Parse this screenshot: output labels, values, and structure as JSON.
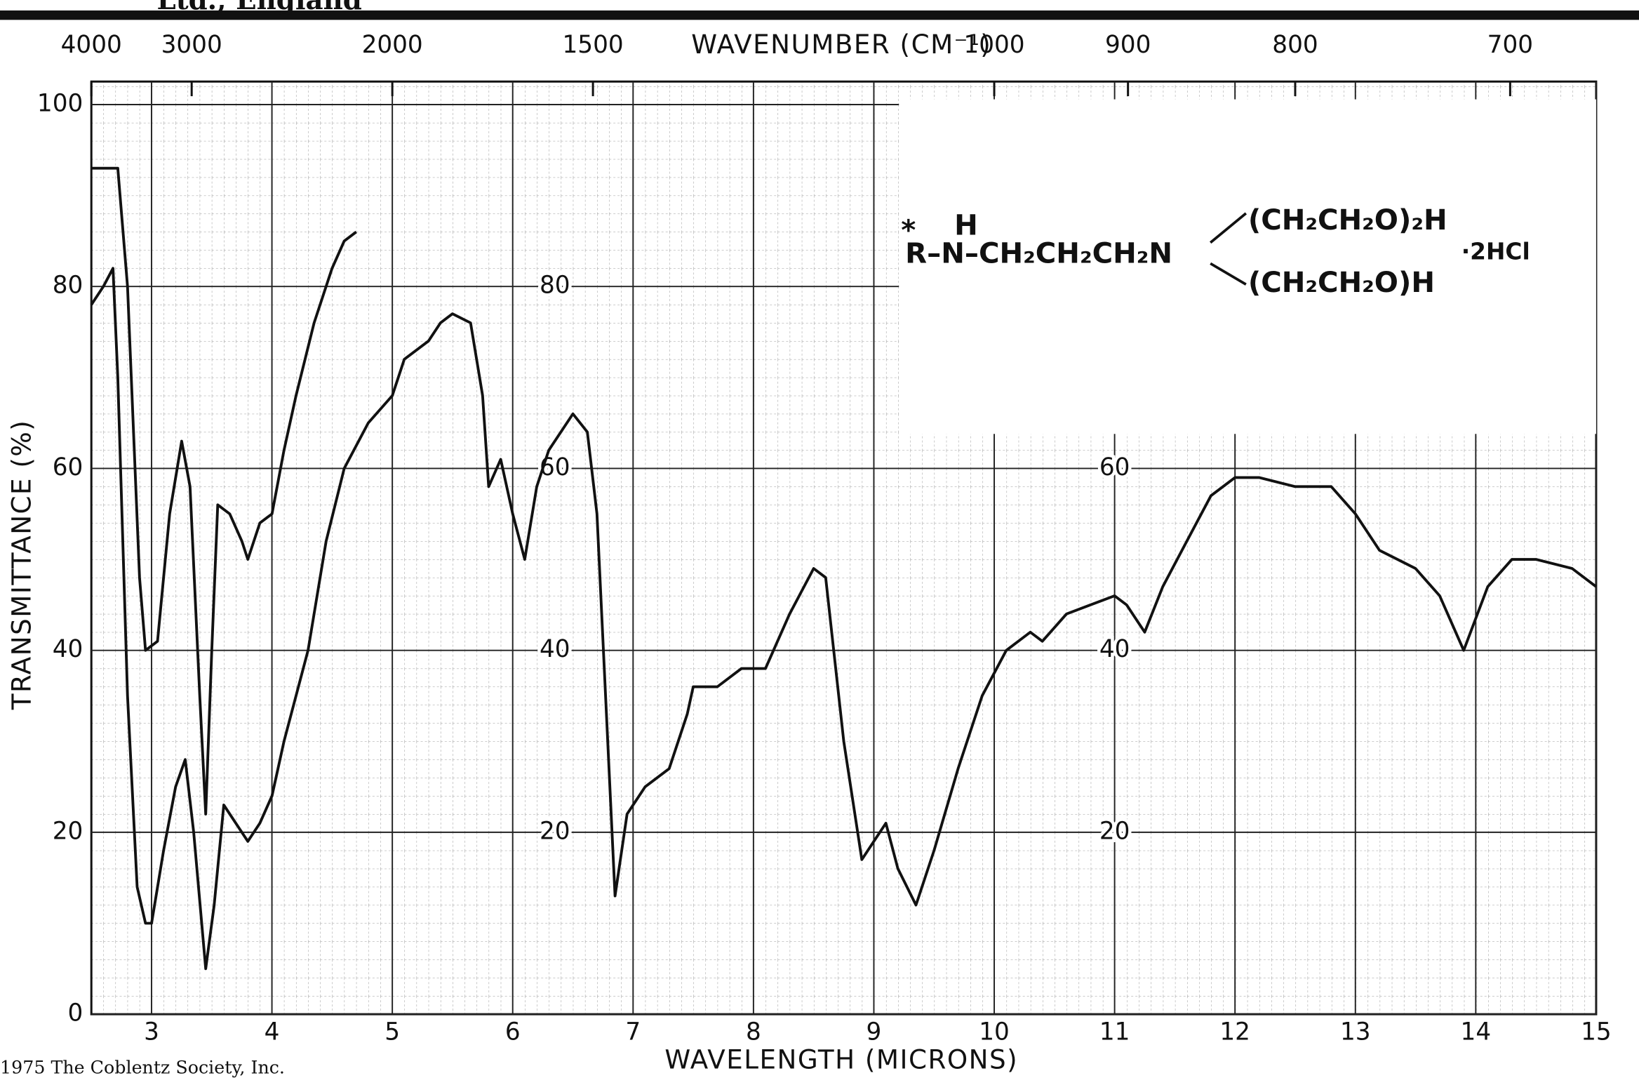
{
  "header": "Ltd., England",
  "footer": "1975  The Coblentz Society, Inc.",
  "chart_data": {
    "type": "line",
    "x_label": "WAVELENGTH (MICRONS)",
    "y_label": "TRANSMITTANCE (%)",
    "top_axis": {
      "title": "WAVENUMBER (CM⁻¹)",
      "ticks": [
        4000,
        3000,
        2000,
        1500,
        1000,
        900,
        800,
        700
      ]
    },
    "xlim": [
      2.5,
      15
    ],
    "ylim": [
      0,
      100
    ],
    "xticks": [
      3,
      4,
      5,
      6,
      7,
      8,
      9,
      10,
      11,
      12,
      13,
      14,
      15
    ],
    "yticks": [
      0,
      20,
      40,
      60,
      80,
      100
    ],
    "inner_yticks": [
      20,
      40,
      60,
      80
    ],
    "grid": true,
    "annotations": [
      "*",
      "R–N–CH₂CH₂CH₂N",
      "H",
      "(CH₂CH₂O)₂H",
      "(CH₂CH₂O)H",
      "·2HCl"
    ],
    "series": [
      {
        "color": "#111",
        "x": [
          2.5,
          2.6,
          2.68,
          2.72,
          2.8,
          2.88,
          2.95,
          3.0,
          3.1,
          3.2,
          3.28,
          3.35,
          3.45,
          3.52,
          3.6,
          3.7,
          3.8,
          3.9,
          4.0,
          4.1,
          4.3,
          4.45,
          4.6,
          4.8,
          5.0,
          5.1,
          5.3,
          5.4,
          5.5,
          5.65,
          5.75,
          5.8,
          5.9,
          6.0,
          6.1,
          6.2,
          6.3,
          6.5,
          6.62,
          6.7,
          6.85,
          6.95,
          7.1,
          7.3,
          7.45,
          7.5,
          7.7,
          7.9,
          8.1,
          8.3,
          8.5,
          8.6,
          8.75,
          8.9,
          9.0,
          9.1,
          9.2,
          9.35,
          9.5,
          9.7,
          9.9,
          10.1,
          10.3,
          10.4,
          10.6,
          10.8,
          11.0,
          11.1,
          11.25,
          11.4,
          11.6,
          11.8,
          12.0,
          12.2,
          12.5,
          12.8,
          13.0,
          13.2,
          13.5,
          13.7,
          13.9,
          14.1,
          14.3,
          14.5,
          14.8,
          15.0
        ],
        "y": [
          78,
          80,
          82,
          70,
          35,
          14,
          10,
          10,
          18,
          25,
          28,
          20,
          5,
          12,
          23,
          21,
          19,
          21,
          24,
          30,
          40,
          52,
          60,
          65,
          68,
          72,
          74,
          76,
          77,
          76,
          68,
          58,
          61,
          55,
          50,
          58,
          62,
          66,
          64,
          55,
          13,
          22,
          25,
          27,
          33,
          36,
          36,
          38,
          38,
          44,
          49,
          48,
          30,
          17,
          19,
          21,
          16,
          12,
          18,
          27,
          35,
          40,
          42,
          41,
          44,
          45,
          46,
          45,
          42,
          47,
          52,
          57,
          59,
          59,
          58,
          58,
          55,
          51,
          49,
          46,
          40,
          47,
          50,
          50,
          49,
          47
        ]
      },
      {
        "color": "#111",
        "x": [
          2.5,
          2.6,
          2.72,
          2.8,
          2.9,
          2.95,
          3.05,
          3.15,
          3.25,
          3.32,
          3.4,
          3.45,
          3.5,
          3.55,
          3.65,
          3.75,
          3.8,
          3.9,
          4.0,
          4.1,
          4.2,
          4.35,
          4.5,
          4.6,
          4.7
        ],
        "y": [
          93,
          93,
          93,
          80,
          48,
          40,
          41,
          55,
          63,
          58,
          35,
          22,
          40,
          56,
          55,
          52,
          50,
          54,
          55,
          62,
          68,
          76,
          82,
          85,
          86
        ]
      }
    ]
  }
}
